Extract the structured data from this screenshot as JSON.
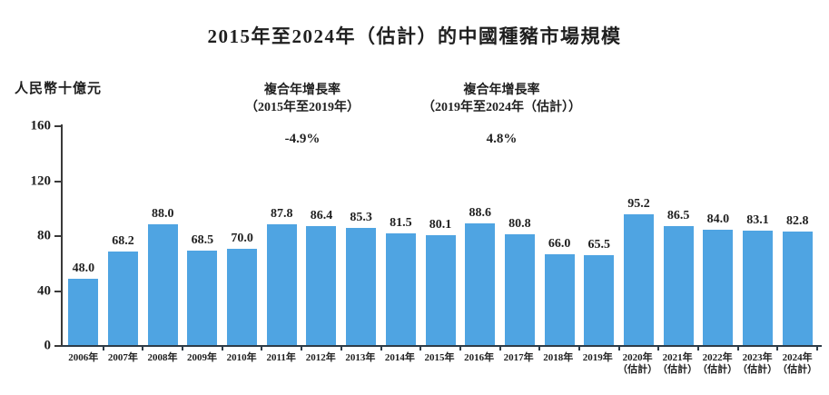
{
  "title": "2015年至2024年（估計）的中國種豬市場規模",
  "chart_data": {
    "type": "bar",
    "title": "2015年至2024年（估計）的中國種豬市場規模",
    "unit_label": "人民幣十億元",
    "categories": [
      "2006年",
      "2007年",
      "2008年",
      "2009年",
      "2010年",
      "2011年",
      "2012年",
      "2013年",
      "2014年",
      "2015年",
      "2016年",
      "2017年",
      "2018年",
      "2019年",
      "2020年",
      "2021年",
      "2022年",
      "2023年",
      "2024年"
    ],
    "category_notes": [
      "",
      "",
      "",
      "",
      "",
      "",
      "",
      "",
      "",
      "",
      "",
      "",
      "",
      "",
      "（估計）",
      "（估計）",
      "（估計）",
      "（估計）",
      "（估計）"
    ],
    "values": [
      48.0,
      68.2,
      88.0,
      68.5,
      70.0,
      87.8,
      86.4,
      85.3,
      81.5,
      80.1,
      88.6,
      80.8,
      66.0,
      65.5,
      95.2,
      86.5,
      84.0,
      83.1,
      82.8
    ],
    "value_labels": [
      "48.0",
      "68.2",
      "88.0",
      "68.5",
      "70.0",
      "87.8",
      "86.4",
      "85.3",
      "81.5",
      "80.1",
      "88.6",
      "80.8",
      "66.0",
      "65.5",
      "95.2",
      "86.5",
      "84.0",
      "83.1",
      "82.8"
    ],
    "yticks": [
      0,
      40,
      80,
      120,
      160
    ],
    "ylim": [
      0,
      160
    ],
    "bar_color": "#4FA4E2",
    "axis_color": "#3a3a3a",
    "annotations": [
      {
        "line1": "複合年增長率",
        "line2": "（2015年至2019年）",
        "value": "-4.9%"
      },
      {
        "line1": "複合年增長率",
        "line2": "（2019年至2024年（估計））",
        "value": "4.8%"
      }
    ]
  }
}
